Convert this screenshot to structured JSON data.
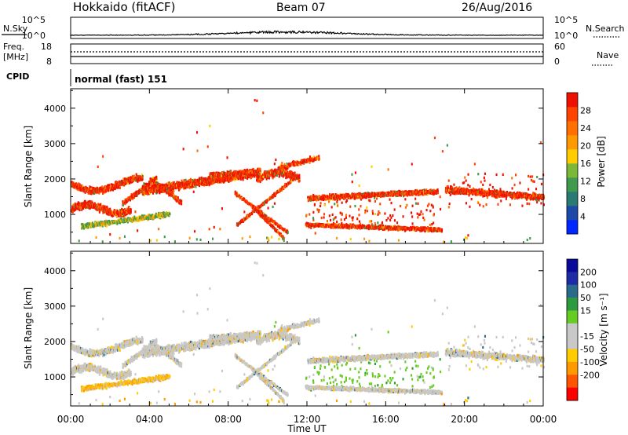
{
  "header": {
    "title": "Hokkaido (fitACF)",
    "beam": "Beam 07",
    "date": "26/Aug/2016"
  },
  "top_panels": {
    "nsky_label": "N.Sky",
    "nsky_ticks": [
      "10^5",
      "10^0"
    ],
    "nsearch_label": "N.Search",
    "nsearch_ticks": [
      "10^5",
      "10^0"
    ],
    "freq_label": "Freq.",
    "freq_unit": "[MHz]",
    "freq_ticks": [
      "18",
      "8"
    ],
    "nave_label": "Nave",
    "nave_ticks": [
      "60",
      "0"
    ],
    "cpid_label": "CPID",
    "cpid_text": "normal (fast) 151"
  },
  "colors": {
    "power": [
      "#0026ff",
      "#1d4aa8",
      "#2a7a72",
      "#3f9a50",
      "#7ab838",
      "#ffcc00",
      "#ff9900",
      "#ff7000",
      "#ff4400",
      "#ee1100"
    ],
    "velocity": [
      "#ff0000",
      "#ff5500",
      "#ff9900",
      "#ffcc00",
      "#c8c8c8",
      "#c8c8c8",
      "#66cc22",
      "#2e9a40",
      "#2a6a8a",
      "#1f2aa6",
      "#0a0a9a"
    ]
  },
  "chart_data": [
    {
      "type": "heatmap",
      "name": "power",
      "x_ticks": [
        "00:00",
        "04:00",
        "08:00",
        "12:00",
        "16:00",
        "20:00",
        "00:00"
      ],
      "x_range_hours": [
        0,
        24
      ],
      "y_range": [
        180,
        4550
      ],
      "y_ticks": [
        1000,
        2000,
        3000,
        4000
      ],
      "ylabel": "Slant Range [km]",
      "colorbar_label": "Power [dB]",
      "colorbar_ticks": [
        4,
        8,
        12,
        16,
        20,
        24,
        28
      ],
      "colorbar_range": [
        0,
        32
      ]
    },
    {
      "type": "heatmap",
      "name": "velocity",
      "x_ticks": [
        "00:00",
        "04:00",
        "08:00",
        "12:00",
        "16:00",
        "20:00",
        "00:00"
      ],
      "x_range_hours": [
        0,
        24
      ],
      "xlabel": "Time UT",
      "y_range": [
        180,
        4550
      ],
      "y_ticks": [
        1000,
        2000,
        3000,
        4000
      ],
      "ylabel": "Slant Range [km]",
      "colorbar_label": "Velocity [m s⁻¹]",
      "colorbar_ticks": [
        "200",
        "100",
        "50",
        "15",
        "-15",
        "-50",
        "-100",
        "-200"
      ]
    }
  ]
}
